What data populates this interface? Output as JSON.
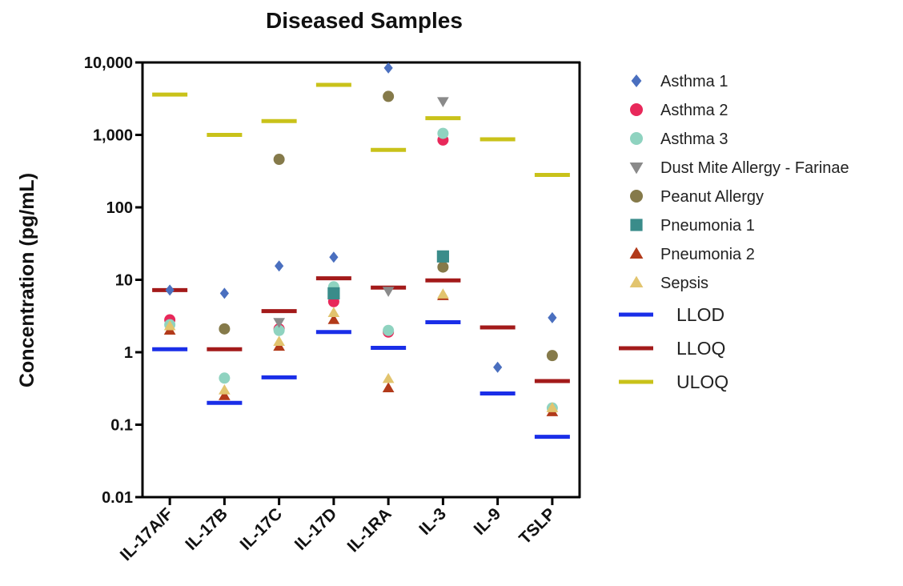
{
  "chart_data": {
    "type": "scatter",
    "title": "Diseased Samples",
    "xlabel": "",
    "ylabel": "Concentration (pg/mL)",
    "yscale": "log",
    "ylim": [
      0.01,
      10000
    ],
    "yticks": [
      0.01,
      0.1,
      1,
      10,
      100,
      1000,
      10000
    ],
    "ytick_labels": [
      "0.01",
      "0.1",
      "1",
      "10",
      "100",
      "1,000",
      "10,000"
    ],
    "categories": [
      "IL-17A/F",
      "IL-17B",
      "IL-17C",
      "IL-17D",
      "IL-1RA",
      "IL-3",
      "IL-9",
      "TSLP"
    ],
    "grid": false,
    "legend_position": "right",
    "series": [
      {
        "name": "Asthma 1",
        "marker": "diamond",
        "color": "#4a6fbf",
        "values": [
          7.2,
          6.5,
          15.5,
          20.5,
          8400,
          null,
          0.62,
          3.0
        ]
      },
      {
        "name": "Asthma 2",
        "marker": "circle",
        "color": "#e8285a",
        "values": [
          2.8,
          null,
          2.1,
          5.0,
          1.9,
          850,
          null,
          null
        ]
      },
      {
        "name": "Asthma 3",
        "marker": "circle",
        "color": "#8fd3c0",
        "values": [
          2.4,
          0.44,
          2.0,
          8.0,
          2.0,
          1050,
          null,
          0.17
        ]
      },
      {
        "name": "Dust Mite Allergy - Farinae",
        "marker": "triangle-down",
        "color": "#8a8a8a",
        "values": [
          null,
          null,
          2.6,
          null,
          7.0,
          2900,
          null,
          null
        ]
      },
      {
        "name": "Peanut Allergy",
        "marker": "circle",
        "color": "#857a4a",
        "values": [
          null,
          2.1,
          460,
          null,
          3400,
          15,
          null,
          0.9
        ]
      },
      {
        "name": "Pneumonia 1",
        "marker": "square",
        "color": "#3a8c8a",
        "values": [
          null,
          null,
          null,
          6.5,
          null,
          21,
          null,
          null
        ]
      },
      {
        "name": "Pneumonia 2",
        "marker": "triangle-up",
        "color": "#b23a1a",
        "values": [
          2.0,
          0.25,
          1.2,
          2.8,
          0.32,
          6.0,
          null,
          0.15
        ]
      },
      {
        "name": "Sepsis",
        "marker": "triangle-up",
        "color": "#e2c46e",
        "values": [
          2.3,
          0.3,
          1.4,
          3.5,
          0.43,
          6.3,
          null,
          0.17
        ]
      }
    ],
    "reference_lines": [
      {
        "name": "LLOD",
        "color": "#1a2ee8",
        "values": [
          1.1,
          0.2,
          0.45,
          1.9,
          1.15,
          2.6,
          0.27,
          0.068
        ]
      },
      {
        "name": "LLOQ",
        "color": "#a31a1a",
        "values": [
          7.2,
          1.1,
          3.7,
          10.5,
          7.8,
          9.8,
          2.2,
          0.4
        ]
      },
      {
        "name": "ULOQ",
        "color": "#c9c21a",
        "values": [
          3600,
          1000,
          1550,
          4900,
          620,
          1700,
          870,
          280
        ]
      }
    ]
  }
}
